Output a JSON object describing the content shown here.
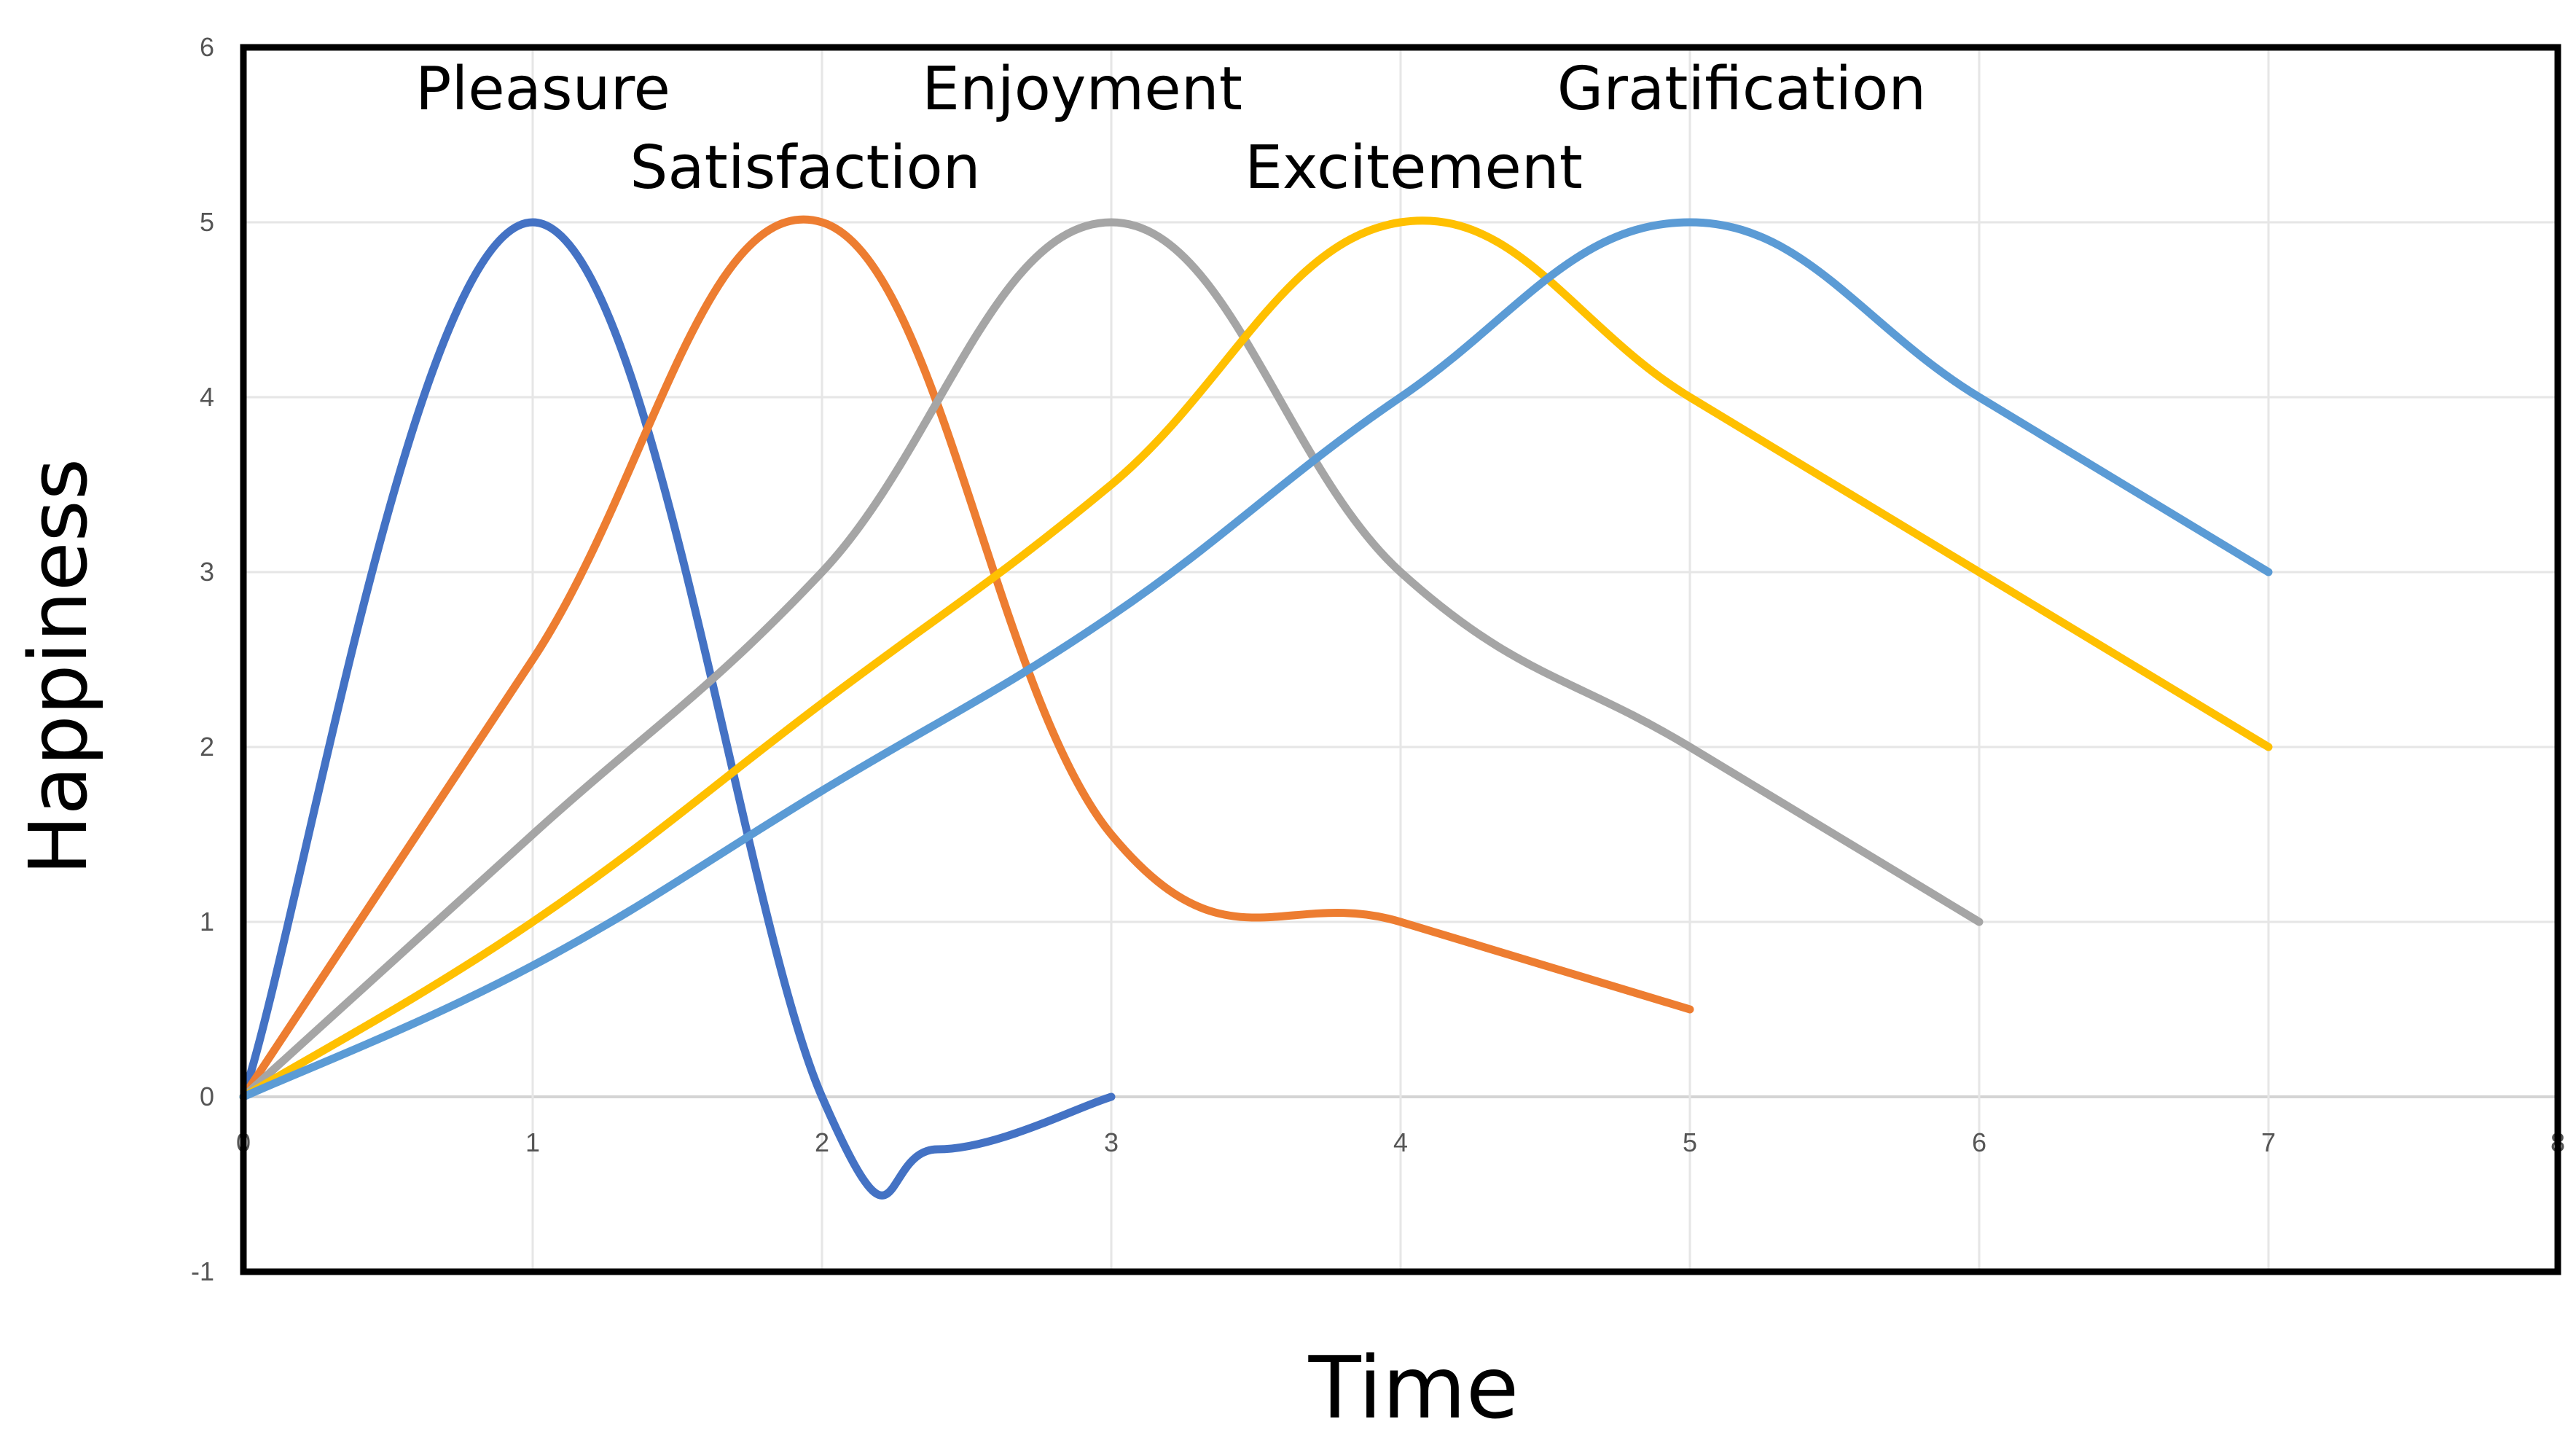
{
  "chart_data": {
    "type": "line",
    "title": "",
    "xlabel": "Time",
    "ylabel": "Happiness",
    "xlim": [
      0,
      8
    ],
    "ylim": [
      -1,
      6
    ],
    "x_ticks": [
      "0",
      "1",
      "2",
      "3",
      "4",
      "5",
      "6",
      "7",
      "8"
    ],
    "y_ticks": [
      "-1",
      "0",
      "1",
      "2",
      "3",
      "4",
      "5",
      "6"
    ],
    "grid": true,
    "legend": "none",
    "series": [
      {
        "name": "Pleasure",
        "color": "#4472C4",
        "points": [
          [
            0,
            0
          ],
          [
            1,
            5
          ],
          [
            2,
            0
          ],
          [
            2.4,
            -0.3
          ],
          [
            3,
            0
          ]
        ]
      },
      {
        "name": "Satisfaction",
        "color": "#ED7D31",
        "points": [
          [
            0,
            0
          ],
          [
            1,
            2.5
          ],
          [
            2,
            5
          ],
          [
            3,
            1.5
          ],
          [
            4,
            1
          ],
          [
            5,
            0.5
          ]
        ]
      },
      {
        "name": "Enjoyment",
        "color": "#A5A5A5",
        "points": [
          [
            0,
            0
          ],
          [
            1,
            1.5
          ],
          [
            2,
            3
          ],
          [
            3,
            5
          ],
          [
            4,
            3
          ],
          [
            5,
            2
          ],
          [
            6,
            1
          ]
        ]
      },
      {
        "name": "Excitement",
        "color": "#FFC000",
        "points": [
          [
            0,
            0
          ],
          [
            1,
            1
          ],
          [
            2,
            2.25
          ],
          [
            3,
            3.5
          ],
          [
            4,
            5
          ],
          [
            5,
            4
          ],
          [
            6,
            3
          ],
          [
            7,
            2
          ]
        ]
      },
      {
        "name": "Gratification",
        "color": "#5B9BD5",
        "points": [
          [
            0,
            0
          ],
          [
            1,
            0.75
          ],
          [
            2,
            1.75
          ],
          [
            3,
            2.75
          ],
          [
            4,
            4
          ],
          [
            5,
            5
          ],
          [
            6,
            4
          ],
          [
            7,
            3
          ]
        ]
      }
    ]
  }
}
